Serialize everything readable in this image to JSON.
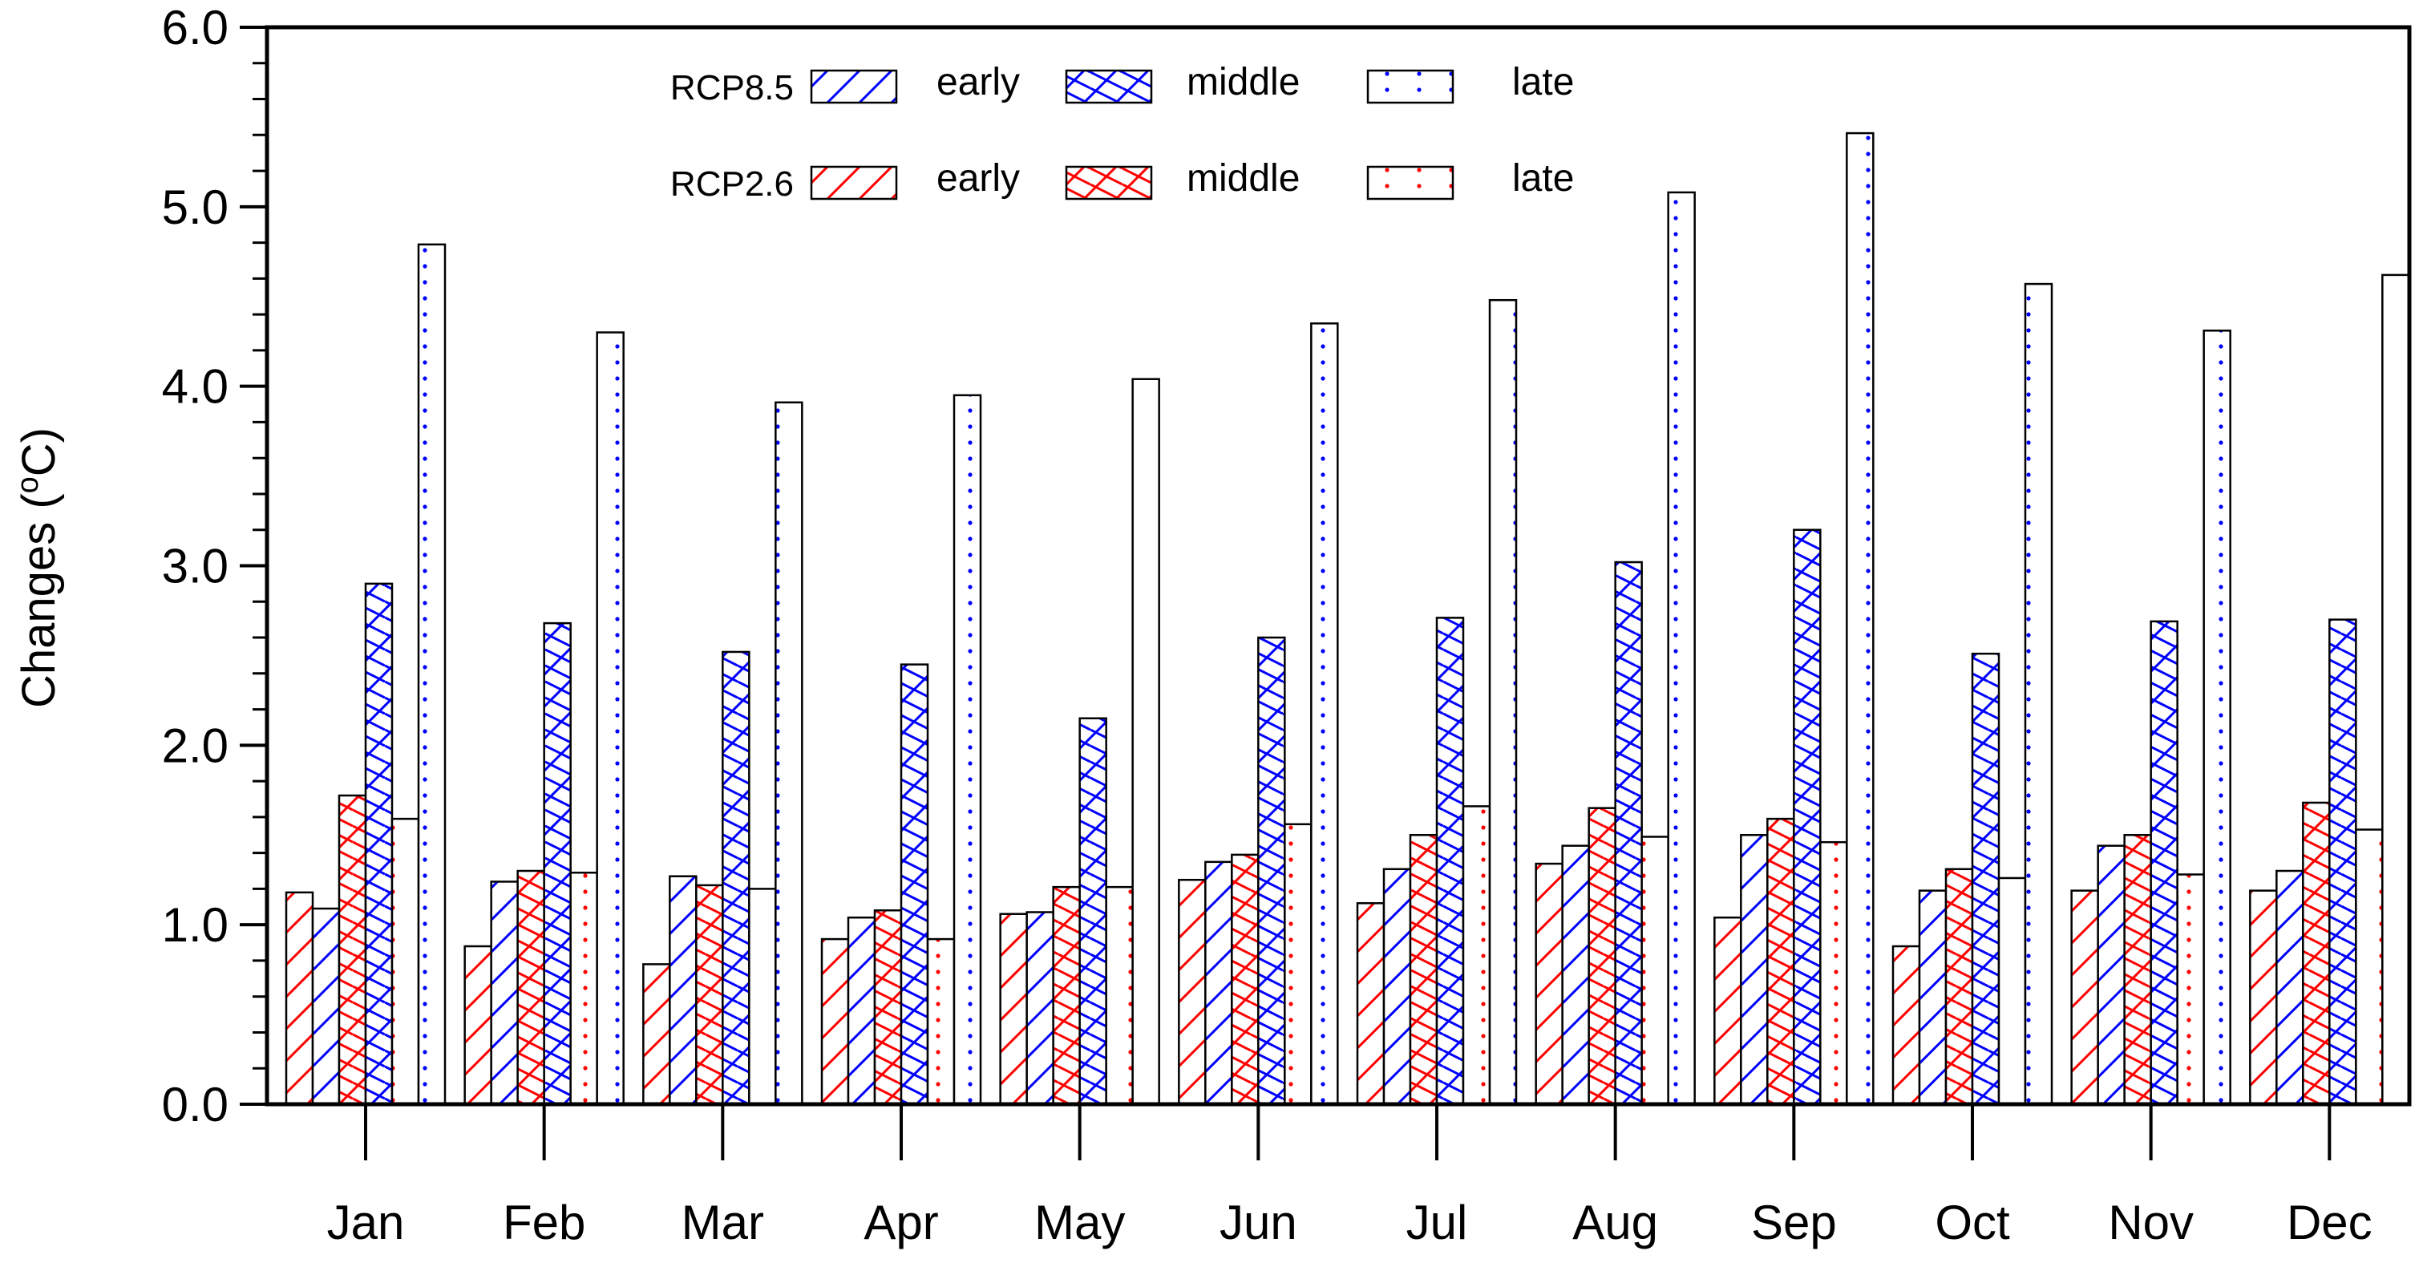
{
  "chart_data": {
    "type": "bar",
    "title": "",
    "xlabel": "",
    "ylabel": "Changes (°C)",
    "ylabel_parts": {
      "prefix": "Changes (",
      "superscript": "o",
      "suffix": "C)"
    },
    "ylim": [
      0.0,
      6.0
    ],
    "yticks": [
      0.0,
      1.0,
      2.0,
      3.0,
      4.0,
      5.0,
      6.0
    ],
    "ytick_labels": [
      "0.0",
      "1.0",
      "2.0",
      "3.0",
      "4.0",
      "5.0",
      "6.0"
    ],
    "categories": [
      "Jan",
      "Feb",
      "Mar",
      "Apr",
      "May",
      "Jun",
      "Jul",
      "Aug",
      "Sep",
      "Oct",
      "Nov",
      "Dec"
    ],
    "grid": false,
    "legend_position": "top",
    "series": [
      {
        "name": "RCP2.6 early",
        "scenario": "RCP2.6",
        "period": "early",
        "color": "#ff0000",
        "pattern": "hatch-forward",
        "values": [
          1.18,
          0.88,
          0.78,
          0.92,
          1.06,
          1.25,
          1.12,
          1.34,
          1.04,
          0.88,
          1.19,
          1.19
        ]
      },
      {
        "name": "RCP8.5 early",
        "scenario": "RCP8.5",
        "period": "early",
        "color": "#0000ff",
        "pattern": "hatch-forward",
        "values": [
          1.09,
          1.24,
          1.27,
          1.04,
          1.07,
          1.35,
          1.31,
          1.44,
          1.5,
          1.19,
          1.44,
          1.3
        ]
      },
      {
        "name": "RCP2.6 middle",
        "scenario": "RCP2.6",
        "period": "middle",
        "color": "#ff0000",
        "pattern": "crosshatch",
        "values": [
          1.72,
          1.3,
          1.22,
          1.08,
          1.21,
          1.39,
          1.5,
          1.65,
          1.59,
          1.31,
          1.5,
          1.68
        ]
      },
      {
        "name": "RCP8.5 middle",
        "scenario": "RCP8.5",
        "period": "middle",
        "color": "#0000ff",
        "pattern": "crosshatch",
        "values": [
          2.9,
          2.68,
          2.52,
          2.45,
          2.15,
          2.6,
          2.71,
          3.02,
          3.2,
          2.51,
          2.69,
          2.7
        ]
      },
      {
        "name": "RCP2.6 late",
        "scenario": "RCP2.6",
        "period": "late",
        "color": "#ff0000",
        "pattern": "dots",
        "values": [
          1.59,
          1.29,
          1.2,
          0.92,
          1.21,
          1.56,
          1.66,
          1.49,
          1.46,
          1.26,
          1.28,
          1.53
        ]
      },
      {
        "name": "RCP8.5 late",
        "scenario": "RCP8.5",
        "period": "late",
        "color": "#0000ff",
        "pattern": "dots",
        "values": [
          4.79,
          4.3,
          3.91,
          3.95,
          4.04,
          4.35,
          4.48,
          5.08,
          5.41,
          4.57,
          4.31,
          4.62
        ]
      }
    ],
    "legend": {
      "rows": [
        {
          "scenario": "RCP8.5",
          "color": "#0000ff",
          "entries": [
            {
              "label": "early",
              "pattern": "hatch-forward"
            },
            {
              "label": "middle",
              "pattern": "crosshatch"
            },
            {
              "label": "late",
              "pattern": "dots"
            }
          ]
        },
        {
          "scenario": "RCP2.6",
          "color": "#ff0000",
          "entries": [
            {
              "label": "early",
              "pattern": "hatch-forward"
            },
            {
              "label": "middle",
              "pattern": "crosshatch"
            },
            {
              "label": "late",
              "pattern": "dots"
            }
          ]
        }
      ]
    }
  }
}
